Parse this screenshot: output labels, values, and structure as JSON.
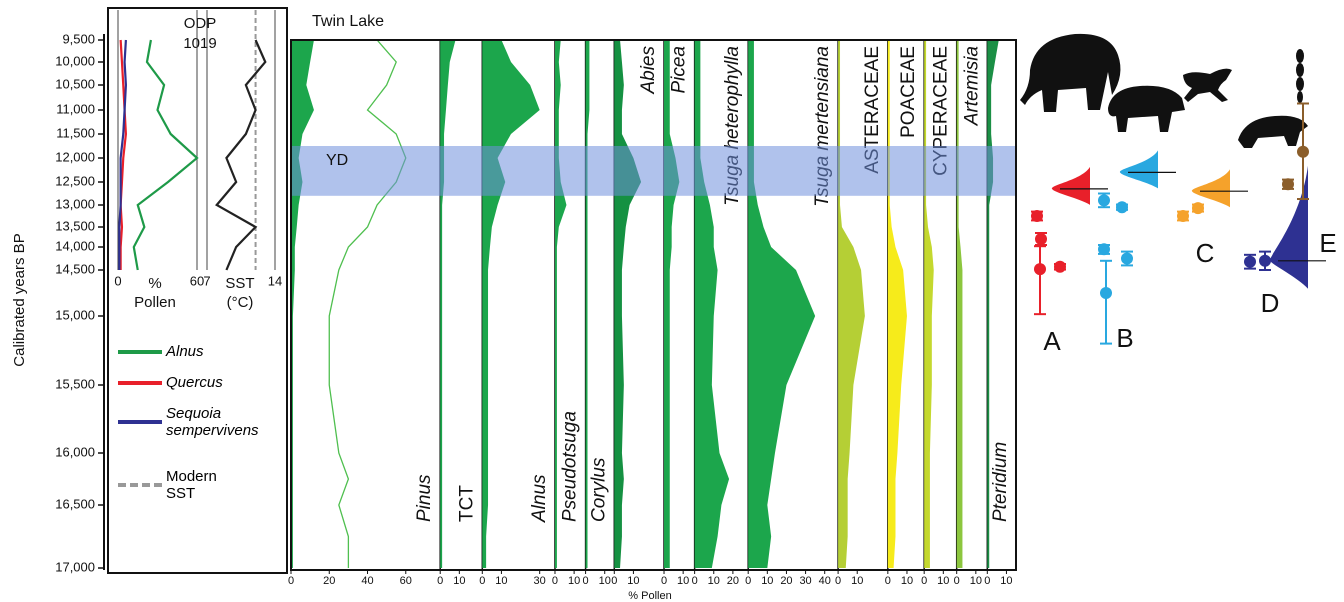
{
  "chart_data": [
    {
      "type": "odp",
      "title": [
        "ODP",
        "1019"
      ],
      "y_label": "Calibrated years BP",
      "ylim": [
        9500,
        17000
      ],
      "yticks": [
        {
          "value": 9500,
          "label": "9,500"
        },
        {
          "value": 10000,
          "label": "10,000"
        },
        {
          "value": 10500,
          "label": "10,500"
        },
        {
          "value": 11000,
          "label": "11,000"
        },
        {
          "value": 11500,
          "label": "11,500"
        },
        {
          "value": 12000,
          "label": "12,000"
        },
        {
          "value": 12500,
          "label": "12,500"
        },
        {
          "value": 13000,
          "label": "13,000"
        },
        {
          "value": 13500,
          "label": "13,500"
        },
        {
          "value": 14000,
          "label": "14,000"
        },
        {
          "value": 14500,
          "label": "14,500"
        },
        {
          "value": 15000,
          "label": "15,000"
        },
        {
          "value": 15500,
          "label": "15,500"
        },
        {
          "value": 16000,
          "label": "16,000"
        },
        {
          "value": 16500,
          "label": "16,500"
        },
        {
          "value": 17000,
          "label": "17,000"
        }
      ],
      "ages": [
        9500,
        10000,
        10500,
        11000,
        11500,
        12000,
        12500,
        13000,
        13500,
        14000,
        14500
      ],
      "xlim": [
        0,
        60
      ],
      "xticks": [
        0,
        60
      ],
      "x_label": [
        "%",
        "Pollen"
      ],
      "sst_xlim": [
        7,
        14
      ],
      "sst_xticks": [
        7,
        14
      ],
      "sst_label": [
        "SST",
        "(°C)"
      ],
      "series": [
        {
          "name": "Alnus",
          "color": "#1e9a48",
          "values": [
            25,
            22,
            35,
            30,
            40,
            60,
            38,
            15,
            20,
            12,
            15
          ]
        },
        {
          "name": "Quercus",
          "color": "#e8202a",
          "values": [
            2,
            3,
            4,
            5,
            6,
            4,
            3,
            2,
            3,
            2,
            2
          ]
        },
        {
          "name": "Sequoia sempervivens",
          "color": "#2e3192",
          "values": [
            6,
            5,
            6,
            5,
            4,
            2,
            2,
            2,
            1,
            1,
            1
          ]
        },
        {
          "axis": "sst",
          "color": "#222222",
          "values": [
            12,
            13,
            11,
            12,
            11,
            9,
            10,
            8,
            12,
            10,
            9
          ]
        }
      ],
      "modern_sst": {
        "name": "Modern SST",
        "value": 12,
        "color": "#999999"
      }
    },
    {
      "type": "pollen",
      "title": "Twin Lake",
      "x_label": "% Pollen",
      "ages": [
        9500,
        10000,
        10500,
        11000,
        11500,
        12000,
        12500,
        13000,
        13500,
        14000,
        14500,
        15000,
        15500,
        16000,
        16250,
        16500,
        16750,
        17000
      ],
      "band": {
        "label": "YD",
        "from": 11750,
        "to": 12800,
        "color": "#6f8fdc"
      },
      "taxa": [
        {
          "name": "Pinus",
          "color": "#1ca64c",
          "line_color": "#4fbf4f",
          "xlim": [
            0,
            78
          ],
          "xticks": [
            0,
            20,
            40,
            60
          ],
          "values": [
            12,
            10,
            8,
            12,
            6,
            4,
            6,
            4,
            3,
            2,
            2,
            1,
            1,
            1,
            1,
            1,
            1,
            1
          ],
          "line_values": [
            45,
            55,
            50,
            40,
            55,
            60,
            55,
            45,
            40,
            30,
            25,
            20,
            20,
            25,
            30,
            25,
            30,
            30
          ]
        },
        {
          "name": "TCT",
          "color": "#1ca64c",
          "xlim": [
            0,
            22
          ],
          "xticks": [
            0,
            10
          ],
          "values": [
            8,
            5,
            4,
            3,
            2,
            2,
            2,
            1,
            1,
            1,
            1,
            1,
            1,
            1,
            1,
            1,
            1,
            1
          ]
        },
        {
          "name": "Alnus",
          "color": "#1ca64c",
          "xlim": [
            0,
            38
          ],
          "xticks": [
            0,
            10,
            30
          ],
          "values": [
            10,
            15,
            25,
            30,
            15,
            8,
            12,
            8,
            5,
            4,
            3,
            3,
            3,
            3,
            3,
            3,
            2,
            2
          ]
        },
        {
          "name": "Pseudotsuga",
          "color": "#1ca64c",
          "xlim": [
            0,
            16
          ],
          "xticks": [
            0,
            10
          ],
          "values": [
            3,
            2,
            3,
            2,
            2,
            2,
            3,
            6,
            2,
            1,
            1,
            1,
            1,
            1,
            1,
            1,
            1,
            1
          ]
        },
        {
          "name": "Corylus",
          "color": "#1ca64c",
          "xlim": [
            0,
            15
          ],
          "xticks": [
            0,
            10
          ],
          "values": [
            2,
            2,
            2,
            2,
            1,
            1,
            1,
            1,
            1,
            1,
            1,
            1,
            1,
            1,
            1,
            1,
            1,
            1
          ]
        },
        {
          "name": "Abies",
          "color": "#159142",
          "xlim": [
            0,
            26
          ],
          "xticks": [
            0,
            10
          ],
          "values": [
            3,
            4,
            5,
            4,
            4,
            10,
            14,
            8,
            6,
            5,
            4,
            4,
            5,
            4,
            5,
            4,
            4,
            3
          ]
        },
        {
          "name": "Picea",
          "color": "#1ca64c",
          "xlim": [
            0,
            16
          ],
          "xticks": [
            0,
            10
          ],
          "values": [
            3,
            3,
            3,
            3,
            3,
            6,
            8,
            5,
            4,
            4,
            3,
            3,
            3,
            3,
            3,
            3,
            3,
            3
          ]
        },
        {
          "name": "Tsuga heterophylla",
          "color": "#1ca64c",
          "xlim": [
            0,
            28
          ],
          "xticks": [
            0,
            10,
            20
          ],
          "values": [
            3,
            3,
            3,
            3,
            3,
            3,
            5,
            8,
            10,
            10,
            12,
            10,
            9,
            13,
            18,
            14,
            12,
            9
          ]
        },
        {
          "name": "Tsuga mertensiana",
          "color": "#1ca64c",
          "xlim": [
            0,
            47
          ],
          "xticks": [
            0,
            10,
            20,
            30,
            40
          ],
          "values": [
            3,
            3,
            3,
            3,
            3,
            3,
            3,
            5,
            8,
            12,
            25,
            35,
            20,
            14,
            12,
            10,
            12,
            10
          ]
        },
        {
          "name": "ASTERACEAE",
          "color": "#b5cf35",
          "xlim": [
            0,
            26
          ],
          "xticks": [
            0,
            10
          ],
          "values": [
            1,
            1,
            1,
            1,
            1,
            1,
            1,
            1,
            2,
            8,
            12,
            14,
            8,
            6,
            5,
            5,
            5,
            4
          ]
        },
        {
          "name": "POACEAE",
          "color": "#f6eb1b",
          "xlim": [
            0,
            19
          ],
          "xticks": [
            0,
            10
          ],
          "values": [
            1,
            1,
            1,
            1,
            1,
            1,
            1,
            1,
            2,
            4,
            8,
            10,
            7,
            5,
            4,
            4,
            4,
            3
          ]
        },
        {
          "name": "CYPERACEAE",
          "color": "#c4d82e",
          "xlim": [
            0,
            17
          ],
          "xticks": [
            0,
            10
          ],
          "values": [
            1,
            1,
            1,
            1,
            1,
            1,
            1,
            1,
            2,
            4,
            5,
            4,
            4,
            3,
            3,
            3,
            3,
            3
          ]
        },
        {
          "name": "Artemisia",
          "color": "#8cc63e",
          "xlim": [
            0,
            16
          ],
          "xticks": [
            0,
            10
          ],
          "values": [
            1,
            1,
            1,
            1,
            1,
            1,
            1,
            1,
            1,
            2,
            3,
            3,
            3,
            3,
            3,
            3,
            3,
            3
          ]
        },
        {
          "name": "Pteridium",
          "color": "#1b8f45",
          "xlim": [
            0,
            15
          ],
          "xticks": [
            0,
            10
          ],
          "values": [
            6,
            4,
            2,
            2,
            2,
            3,
            3,
            1,
            1,
            1,
            1,
            1,
            1,
            1,
            1,
            1,
            1,
            1
          ]
        }
      ]
    },
    {
      "type": "megafauna",
      "groups": [
        {
          "label": "A",
          "color": "#e8202a",
          "mode": 12650,
          "points": [
            [
              13250,
              100
            ],
            [
              13800,
              150
            ],
            [
              14480,
              500
            ],
            [
              14430,
              60
            ]
          ]
        },
        {
          "label": "B",
          "color": "#29a8e0",
          "mode": 12300,
          "points": [
            [
              12900,
              150
            ],
            [
              13050,
              60
            ],
            [
              14050,
              100
            ],
            [
              14250,
              150
            ],
            [
              14750,
              450
            ]
          ]
        },
        {
          "label": "C",
          "color": "#f5a22b",
          "mode": 12700,
          "points": [
            [
              13250,
              100
            ],
            [
              13070,
              80
            ]
          ]
        },
        {
          "label": "D",
          "color": "#2e3192",
          "mode": 14300,
          "points": [
            [
              14320,
              150
            ],
            [
              14300,
              200
            ]
          ]
        },
        {
          "label": "E",
          "color": "#8b5e2b",
          "points": [
            [
              12550,
              100
            ],
            [
              11870,
              1000
            ]
          ]
        }
      ]
    }
  ]
}
